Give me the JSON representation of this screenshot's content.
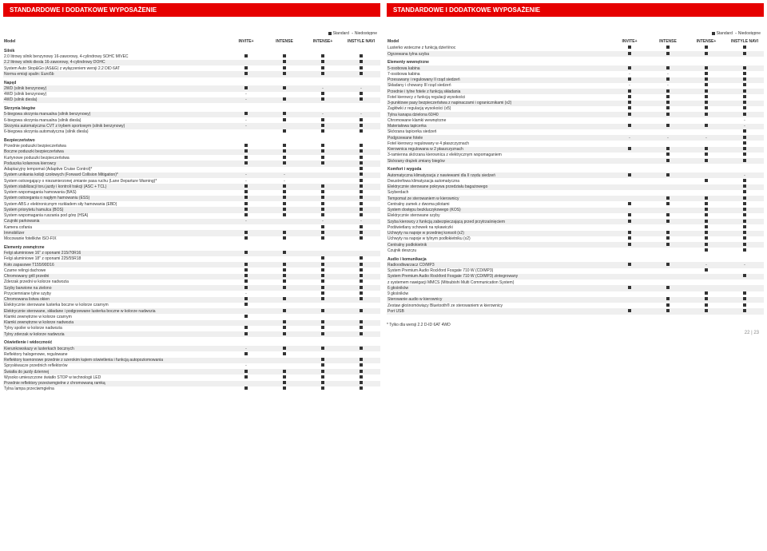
{
  "title": "STANDARDOWE I DODATKOWE WYPOSAŻENIE",
  "legend": {
    "std": "Standard",
    "na": "Niedostępne"
  },
  "cols": [
    "INVITE+",
    "INTENSE",
    "INTENSE+",
    "INSTYLE NAVI"
  ],
  "model": "Model",
  "footnote": "* Tylko dla wersji 2.2 D-ID 6AT 4WD",
  "pagenum": "22 | 23",
  "left": [
    {
      "s": "Silnik"
    },
    {
      "t": "2.0 litrowy silnik benzynowy 16-zaworowy, 4-cylindrowy SOHC MIVEC",
      "v": [
        "■",
        "■",
        "■",
        "■"
      ]
    },
    {
      "t": "2.2 litrowy silnik diesla 16-zaworowy, 4-cylindrowy DOHC",
      "v": [
        "",
        "■",
        "■",
        "■"
      ],
      "z": 1
    },
    {
      "t": "System Auto Stop&Go (AS&G) z wyłączeniem wersji 2.2 DID 6AT",
      "v": [
        "■",
        "■",
        "■",
        "■"
      ]
    },
    {
      "t": "Norma emisji spalin: Euro5b",
      "v": [
        "■",
        "■",
        "■",
        "■"
      ],
      "z": 1
    },
    {
      "s": "Napęd"
    },
    {
      "t": "2WD (silnik benzynowy)",
      "v": [
        "■",
        "■",
        "-",
        "-"
      ],
      "z": 1
    },
    {
      "t": "4WD (silnik benzynowy)",
      "v": [
        "-",
        "",
        "■",
        "■"
      ]
    },
    {
      "t": "4WD (silnik diesla)",
      "v": [
        "-",
        "■",
        "■",
        "■"
      ],
      "z": 1
    },
    {
      "s": "Skrzynia biegów"
    },
    {
      "t": "5-biegowa skrzynia manualna (silnik benzynowy)",
      "v": [
        "■",
        "■",
        "-",
        "-"
      ],
      "z": 1
    },
    {
      "t": "6-biegowa skrzynia manualna (silnik diesla)",
      "v": [
        "-",
        "■",
        "■",
        "■"
      ]
    },
    {
      "t": "Skrzynia automatyczna CVT z trybem sportowym (silnik benzynowy)",
      "v": [
        "-",
        "",
        "■",
        "■"
      ],
      "z": 1
    },
    {
      "t": "6-biegowa skrzynia automatyczna (silnik diesla)",
      "v": [
        "",
        "■",
        "■",
        "■"
      ]
    },
    {
      "s": "Bezpieczeństwo"
    },
    {
      "t": "Przednie poduszki bezpieczeństwa",
      "v": [
        "■",
        "■",
        "■",
        "■"
      ]
    },
    {
      "t": "Boczne poduszki bezpieczeństwa",
      "v": [
        "■",
        "■",
        "■",
        "■"
      ],
      "z": 1
    },
    {
      "t": "Kurtynowe poduszki bezpieczeństwa",
      "v": [
        "■",
        "■",
        "■",
        "■"
      ]
    },
    {
      "t": "Poduszka kolanowa kierowcy",
      "v": [
        "■",
        "■",
        "■",
        "■"
      ],
      "z": 1
    },
    {
      "t": "Adaptacyjny tempomat (Adaptive Cruise Control)*",
      "v": [
        "",
        "",
        "",
        "■"
      ]
    },
    {
      "t": "System unikania kolizji czołowych (Forward Collision Mitigation)*",
      "v": [
        "-",
        "-",
        "",
        "■"
      ],
      "z": 1
    },
    {
      "t": "System ostrzegający o niezamierzonej zmianie pasa ruchu (Lane Departure Warning)*",
      "v": [
        "-",
        "-",
        "",
        "■"
      ]
    },
    {
      "t": "System stabilizacji toru jazdy i kontroli trakcji (ASC + TCL)",
      "v": [
        "■",
        "■",
        "■",
        "■"
      ],
      "z": 1
    },
    {
      "t": "System wspomagania hamowania (BAS)",
      "v": [
        "■",
        "■",
        "■",
        "■"
      ]
    },
    {
      "t": "System ostrzegania o nagłym hamowaniu (ESS)",
      "v": [
        "■",
        "■",
        "■",
        "■"
      ],
      "z": 1
    },
    {
      "t": "System ABS z elektronicznym rozkładem siły hamowania (EBD)",
      "v": [
        "■",
        "■",
        "■",
        "■"
      ]
    },
    {
      "t": "System priorytetu hamulca (BOS)",
      "v": [
        "■",
        "■",
        "■",
        "■"
      ],
      "z": 1
    },
    {
      "t": "System wspomagania ruszania pod górę (HSA)",
      "v": [
        "■",
        "■",
        "■",
        "■"
      ]
    },
    {
      "t": "Czujniki parkowania",
      "v": [
        "-",
        "",
        "-",
        "-"
      ],
      "z": 1
    },
    {
      "t": "Kamera cofania",
      "v": [
        "",
        "",
        "■",
        "■"
      ]
    },
    {
      "t": "Immobilizer",
      "v": [
        "■",
        "■",
        "■",
        "■"
      ],
      "z": 1
    },
    {
      "t": "Mocowanie fotelików ISO-FIX",
      "v": [
        "■",
        "■",
        "■",
        "■"
      ]
    },
    {
      "s": "Elementy zewnętrzne"
    },
    {
      "t": "Felgi aluminiowe 16\" z oponami 215/70R16",
      "v": [
        "■",
        "■",
        "",
        ""
      ],
      "z": 1
    },
    {
      "t": "Felgi aluminiowe 18\" z oponami 225/55R18",
      "v": [
        "",
        "",
        "■",
        "■"
      ]
    },
    {
      "t": "Koło zapasowe T155/90D16",
      "v": [
        "■",
        "■",
        "■",
        "■"
      ],
      "z": 1
    },
    {
      "t": "Czarne relingi dachowe",
      "v": [
        "■",
        "■",
        "■",
        "■"
      ]
    },
    {
      "t": "Chromowany grill przedni",
      "v": [
        "■",
        "■",
        "■",
        "■"
      ],
      "z": 1
    },
    {
      "t": "Zderzak przedni w kolorze nadwozia",
      "v": [
        "■",
        "■",
        "■",
        "■"
      ]
    },
    {
      "t": "Szyby barwione na zielono",
      "v": [
        "■",
        "■",
        "■",
        "■"
      ],
      "z": 1
    },
    {
      "t": "Przyciemniane tylne szyby",
      "v": [
        "-",
        "",
        "■",
        "■"
      ]
    },
    {
      "t": "Chromowana listwa okien",
      "v": [
        "■",
        "■",
        "■",
        "■"
      ],
      "z": 1
    },
    {
      "t": "Elektrycznie sterowane lusterka boczne w kolorze czarnym",
      "v": [
        "■",
        "",
        "",
        ""
      ]
    },
    {
      "t": "Elektrycznie sterowane, składane i podgrzewane lusterka boczne w kolorze nadwozia",
      "v": [
        "",
        "■",
        "■",
        "■"
      ],
      "z": 1
    },
    {
      "t": "Klamki zewnętrzne w kolorze czarnym",
      "v": [
        "■",
        "",
        "",
        ""
      ]
    },
    {
      "t": "Klamki zewnętrzne w kolorze nadwozia",
      "v": [
        "",
        "■",
        "■",
        "■"
      ],
      "z": 1
    },
    {
      "t": "Tylny spoiler w kolorze nadwozia",
      "v": [
        "■",
        "■",
        "■",
        "■"
      ]
    },
    {
      "t": "Tylny zderzak w kolorze nadwozia",
      "v": [
        "■",
        "■",
        "■",
        "■"
      ],
      "z": 1
    },
    {
      "s": "Oświetlenie i widoczność"
    },
    {
      "t": "Kierunkowskazy w lusterkach bocznych",
      "v": [
        "-",
        "■",
        "■",
        "■"
      ],
      "z": 1
    },
    {
      "t": "Reflektory halogenowe, regulowane",
      "v": [
        "■",
        "■",
        "",
        ""
      ]
    },
    {
      "t": "Reflektory ksenonowe przednie z szerokim kątem oświetlenia i funkcją autopoziomowania",
      "v": [
        "",
        "",
        "■",
        "■"
      ],
      "z": 1
    },
    {
      "t": "Spryskiwacze przednich reflektorów",
      "v": [
        "-",
        "",
        "■",
        "■"
      ]
    },
    {
      "t": "Światła do jazdy dziennej",
      "v": [
        "■",
        "■",
        "■",
        "■"
      ],
      "z": 1
    },
    {
      "t": "Wysoko umieszczone światło STOP w technologii LED",
      "v": [
        "■",
        "■",
        "■",
        "■"
      ]
    },
    {
      "t": "Przednie reflektory przeciwmgielne z chromowaną ramką",
      "v": [
        "",
        "■",
        "■",
        "■"
      ],
      "z": 1
    },
    {
      "t": "Tylna lampa przeciwmgielna",
      "v": [
        "■",
        "■",
        "■",
        "■"
      ]
    }
  ],
  "right": [
    {
      "t": "Lusterko wsteczne z funkcją dzień/noc",
      "v": [
        "■",
        "■",
        "■",
        "■"
      ]
    },
    {
      "t": "Ogrzewana tylna szyba",
      "v": [
        "■",
        "■",
        "■",
        "■"
      ],
      "z": 1
    },
    {
      "s": "Elementy wewnętrzne"
    },
    {
      "t": "5-osobowa kabina",
      "v": [
        "■",
        "■",
        "■",
        "■"
      ],
      "z": 1
    },
    {
      "t": "7-osobowa kabina",
      "v": [
        "-",
        "-",
        "■",
        "■"
      ]
    },
    {
      "t": "Przesuwany i regulowany II rząd siedzeń",
      "v": [
        "■",
        "■",
        "■",
        "■"
      ],
      "z": 1
    },
    {
      "t": "Składany i chowany III rząd siedzeń",
      "v": [
        "-",
        "-",
        "■",
        "■"
      ]
    },
    {
      "t": "Przednie i tylne fotele z funkcją składania",
      "v": [
        "■",
        "■",
        "■",
        "■"
      ],
      "z": 1
    },
    {
      "t": "Fotel kierowcy z funkcją regulacji wysokości",
      "v": [
        "■",
        "■",
        "■",
        "■"
      ]
    },
    {
      "t": "3-punktowe pasy bezpieczeństwa z napinaczami i ogranicznikami (x2)",
      "v": [
        "■",
        "■",
        "■",
        "■"
      ],
      "z": 1
    },
    {
      "t": "Zagłówki z regulacją wysokości (x5)",
      "v": [
        "■",
        "■",
        "■",
        "■"
      ]
    },
    {
      "t": "Tylna kanapa dzielona 60/40",
      "v": [
        "■",
        "■",
        "■",
        "■"
      ],
      "z": 1
    },
    {
      "t": "Chromowane klamki wewnętrzne",
      "v": [
        "",
        "",
        "",
        "-"
      ]
    },
    {
      "t": "Materiałowa tapicerka",
      "v": [
        "■",
        "■",
        "■",
        "-"
      ],
      "z": 1
    },
    {
      "t": "Skórzana tapicerka siedzeń",
      "v": [
        "",
        "",
        "",
        "■"
      ]
    },
    {
      "t": "Podgrzewane fotele",
      "v": [
        "-",
        "-",
        "-",
        "■"
      ],
      "z": 1
    },
    {
      "t": "Fotel kierowcy regulowany w 4 płaszczyznach",
      "v": [
        "",
        "",
        "",
        "■"
      ]
    },
    {
      "t": "Kierownica regulowana w 2 płaszczyznach",
      "v": [
        "■",
        "■",
        "■",
        "■"
      ],
      "z": 1
    },
    {
      "t": "3-ramienna skórzana kierownica z elektrycznym wspomaganiem",
      "v": [
        "",
        "■",
        "■",
        "■"
      ]
    },
    {
      "t": "Skórzany drążek zmiany biegów",
      "v": [
        "",
        "■",
        "■",
        "■"
      ],
      "z": 1
    },
    {
      "s": "Komfort i wygoda"
    },
    {
      "t": "Automatyczna klimatyzacja z nawiewami dla II rzędu siedzeń",
      "v": [
        "■",
        "■",
        "",
        "-"
      ],
      "z": 1
    },
    {
      "t": "Dwustrefowa klimatyzacja automatyczna",
      "v": [
        "",
        "",
        "■",
        "■"
      ]
    },
    {
      "t": "Elektrycznie sterowane pokrywa przedziału bagażowego",
      "v": [
        "",
        "",
        "",
        "■"
      ],
      "z": 1
    },
    {
      "t": "Szyberdach",
      "v": [
        "",
        "",
        "",
        "■"
      ]
    },
    {
      "t": "Tempomat ze sterowaniem w kierownicy",
      "v": [
        "",
        "■",
        "■",
        "■"
      ],
      "z": 1
    },
    {
      "t": "Centralny zamek z dwoma pilotami",
      "v": [
        "■",
        "■",
        "■",
        "■"
      ]
    },
    {
      "t": "System dostępu bezkluczykowego (KOS)",
      "v": [
        "",
        "",
        "■",
        "■"
      ],
      "z": 1
    },
    {
      "t": "Elektrycznie sterowane szyby",
      "v": [
        "■",
        "■",
        "■",
        "■"
      ]
    },
    {
      "t": "Szyba kierowcy z funkcją zabezpieczającą przed przytrzaśnięciem",
      "v": [
        "■",
        "■",
        "■",
        "■"
      ],
      "z": 1
    },
    {
      "t": "Podświetlany schowek na rękawiczki",
      "v": [
        "",
        "",
        "■",
        "■"
      ]
    },
    {
      "t": "Uchwyty na napoje w przedniej konsoli (x2)",
      "v": [
        "■",
        "■",
        "■",
        "■"
      ],
      "z": 1
    },
    {
      "t": "Uchwyty na napoje w tylnym podłokietniku (x2)",
      "v": [
        "■",
        "■",
        "■",
        "■"
      ]
    },
    {
      "t": "Centralny podłokietnik",
      "v": [
        "■",
        "■",
        "■",
        "■"
      ],
      "z": 1
    },
    {
      "t": "Czujnik deszczu",
      "v": [
        "",
        "",
        "■",
        "■"
      ]
    },
    {
      "s": "Audio i komunikacja"
    },
    {
      "t": "Radioodtwarzacz CD/MP3",
      "v": [
        "■",
        "■",
        "-",
        "-"
      ],
      "z": 1
    },
    {
      "t": "System Premium Audio Rockford Fosgate 710 W (CD/MP3)",
      "v": [
        "",
        "",
        "■",
        ""
      ]
    },
    {
      "t": "System Premium Audio Rockford Fosgate 710 W (CD/MP3) zintegrowany",
      "v": [
        "",
        "",
        "",
        "■"
      ],
      "z": 1
    },
    {
      "t": "z systemem nawigacji MMCS (Mitsubishi Multi Communication System)",
      "v": [
        "",
        "",
        "",
        ""
      ]
    },
    {
      "t": "6 głośników",
      "v": [
        "■",
        "■",
        "",
        ""
      ],
      "z": 1
    },
    {
      "t": "9 głośników",
      "v": [
        "",
        "",
        "■",
        "■"
      ]
    },
    {
      "t": "Sterowanie audio w kierownicy",
      "v": [
        "",
        "■",
        "■",
        "■"
      ],
      "z": 1
    },
    {
      "t": "Zestaw głośnomówiący Bluetooth® ze sterowaniem w kierownicy",
      "v": [
        "",
        "■",
        "■",
        "■"
      ]
    },
    {
      "t": "Port USB",
      "v": [
        "■",
        "■",
        "■",
        "■"
      ],
      "z": 1
    }
  ]
}
